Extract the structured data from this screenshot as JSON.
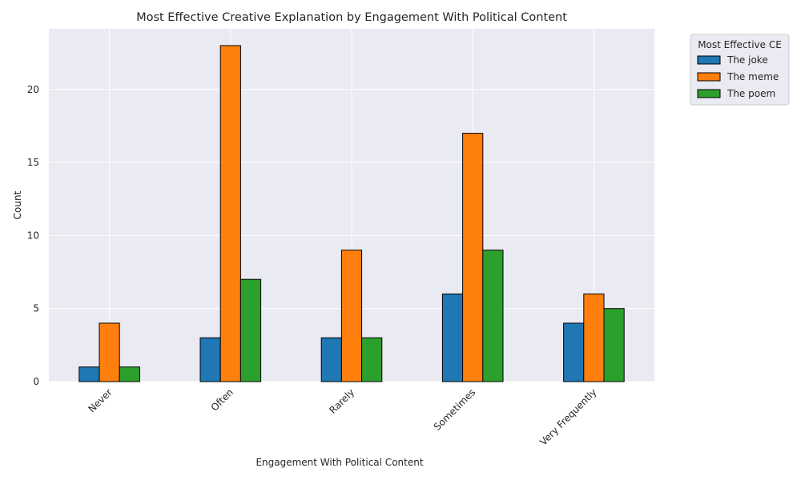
{
  "chart_data": {
    "type": "bar",
    "title": "Most Effective Creative Explanation by Engagement With Political Content",
    "xlabel": "Engagement With Political Content",
    "ylabel": "Count",
    "categories": [
      "Never",
      "Often",
      "Rarely",
      "Sometimes",
      "Very Frequently"
    ],
    "series": [
      {
        "name": "The joke",
        "values": [
          1,
          3,
          3,
          6,
          4
        ],
        "color": "#1f77b4"
      },
      {
        "name": "The meme",
        "values": [
          4,
          23,
          9,
          17,
          6
        ],
        "color": "#ff7f0e"
      },
      {
        "name": "The poem",
        "values": [
          1,
          7,
          3,
          9,
          5
        ],
        "color": "#2ca02c"
      }
    ],
    "ylim": [
      0,
      24.15
    ],
    "yticks": [
      0,
      5,
      10,
      15,
      20
    ],
    "grid": true,
    "legend": {
      "title": "Most Effective CE",
      "placement": "outside-top-right"
    },
    "plot_background": "#eaeaf2",
    "grid_color": "#ffffff"
  }
}
